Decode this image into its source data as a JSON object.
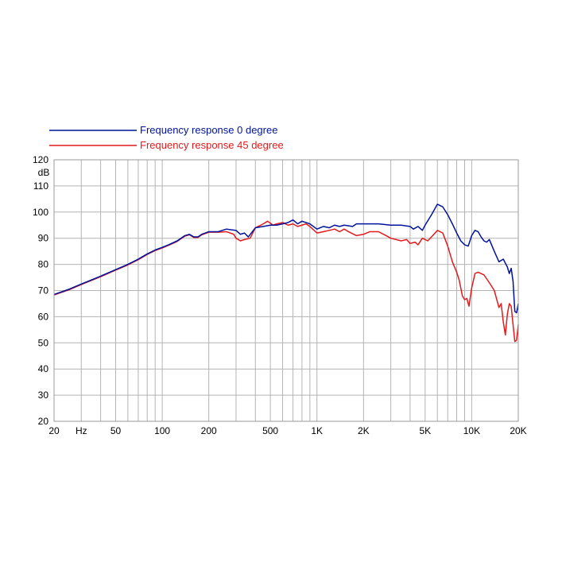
{
  "chart_data": {
    "type": "line",
    "x_scale": "log",
    "xlim": [
      20,
      20000
    ],
    "ylim": [
      20,
      120
    ],
    "ylabel": "dB",
    "grid": true,
    "legend_position": "top-left",
    "y_ticks": [
      "120",
      "110",
      "100",
      "90",
      "80",
      "70",
      "60",
      "50",
      "40",
      "30",
      "20"
    ],
    "x_ticks": [
      {
        "value": 20,
        "label": "20"
      },
      {
        "value": 30,
        "label": "Hz"
      },
      {
        "value": 50,
        "label": "50"
      },
      {
        "value": 100,
        "label": "100"
      },
      {
        "value": 200,
        "label": "200"
      },
      {
        "value": 500,
        "label": "500"
      },
      {
        "value": 1000,
        "label": "1K"
      },
      {
        "value": 2000,
        "label": "2K"
      },
      {
        "value": 5000,
        "label": "5K"
      },
      {
        "value": 10000,
        "label": "10K"
      },
      {
        "value": 20000,
        "label": "20K"
      }
    ],
    "series": [
      {
        "name": "Frequency response 0 degree",
        "color": "#00139c",
        "points": [
          [
            20,
            68.5
          ],
          [
            25,
            70.5
          ],
          [
            30,
            72.5
          ],
          [
            40,
            75.5
          ],
          [
            50,
            78
          ],
          [
            60,
            80
          ],
          [
            70,
            82
          ],
          [
            80,
            84
          ],
          [
            90,
            85.5
          ],
          [
            100,
            86.5
          ],
          [
            110,
            87.5
          ],
          [
            125,
            89
          ],
          [
            140,
            91
          ],
          [
            150,
            91.5
          ],
          [
            160,
            90.5
          ],
          [
            170,
            90.5
          ],
          [
            180,
            91.5
          ],
          [
            200,
            92.5
          ],
          [
            230,
            92.5
          ],
          [
            260,
            93.5
          ],
          [
            300,
            93
          ],
          [
            320,
            91.5
          ],
          [
            340,
            92
          ],
          [
            360,
            90.5
          ],
          [
            400,
            94
          ],
          [
            450,
            94.5
          ],
          [
            500,
            95
          ],
          [
            550,
            95
          ],
          [
            600,
            95.5
          ],
          [
            650,
            96
          ],
          [
            700,
            97
          ],
          [
            750,
            95.5
          ],
          [
            800,
            96.5
          ],
          [
            850,
            96
          ],
          [
            900,
            95.5
          ],
          [
            1000,
            93.5
          ],
          [
            1100,
            94.5
          ],
          [
            1200,
            94
          ],
          [
            1300,
            95
          ],
          [
            1400,
            94.5
          ],
          [
            1500,
            95
          ],
          [
            1700,
            94.5
          ],
          [
            1800,
            95.5
          ],
          [
            2000,
            95.5
          ],
          [
            2500,
            95.5
          ],
          [
            3000,
            95
          ],
          [
            3500,
            95
          ],
          [
            4000,
            94.5
          ],
          [
            4200,
            93.5
          ],
          [
            4500,
            94.5
          ],
          [
            4800,
            93
          ],
          [
            5000,
            95
          ],
          [
            5500,
            99
          ],
          [
            6000,
            103
          ],
          [
            6500,
            102
          ],
          [
            7000,
            99
          ],
          [
            7500,
            95.5
          ],
          [
            8000,
            92
          ],
          [
            8500,
            89
          ],
          [
            9000,
            87.5
          ],
          [
            9500,
            87
          ],
          [
            10000,
            91
          ],
          [
            10500,
            93
          ],
          [
            11000,
            92.5
          ],
          [
            11500,
            90.5
          ],
          [
            12000,
            89
          ],
          [
            12500,
            88.5
          ],
          [
            13000,
            89.5
          ],
          [
            14000,
            85
          ],
          [
            15000,
            81
          ],
          [
            16000,
            82
          ],
          [
            17000,
            79
          ],
          [
            17500,
            76.5
          ],
          [
            18000,
            78.5
          ],
          [
            18500,
            73.5
          ],
          [
            19000,
            62
          ],
          [
            19500,
            61.5
          ],
          [
            20000,
            65
          ]
        ]
      },
      {
        "name": "Frequency response 45 degree",
        "color": "#e31a1c",
        "points": [
          [
            20,
            68.3
          ],
          [
            25,
            70.3
          ],
          [
            30,
            72.3
          ],
          [
            40,
            75.3
          ],
          [
            50,
            77.8
          ],
          [
            60,
            79.8
          ],
          [
            70,
            81.8
          ],
          [
            80,
            83.8
          ],
          [
            90,
            85.3
          ],
          [
            100,
            86.3
          ],
          [
            110,
            87.3
          ],
          [
            125,
            88.8
          ],
          [
            140,
            90.8
          ],
          [
            150,
            91.3
          ],
          [
            160,
            90.3
          ],
          [
            170,
            90.3
          ],
          [
            180,
            91.3
          ],
          [
            200,
            92.3
          ],
          [
            230,
            92.3
          ],
          [
            260,
            92.5
          ],
          [
            290,
            91.5
          ],
          [
            300,
            90
          ],
          [
            320,
            89
          ],
          [
            340,
            89.5
          ],
          [
            370,
            90
          ],
          [
            400,
            94
          ],
          [
            450,
            95.5
          ],
          [
            480,
            96.5
          ],
          [
            520,
            95
          ],
          [
            550,
            95.5
          ],
          [
            600,
            96
          ],
          [
            650,
            95
          ],
          [
            700,
            95.5
          ],
          [
            750,
            94.5
          ],
          [
            800,
            95
          ],
          [
            850,
            95.5
          ],
          [
            900,
            94.5
          ],
          [
            1000,
            92
          ],
          [
            1100,
            92.5
          ],
          [
            1200,
            93
          ],
          [
            1300,
            93.5
          ],
          [
            1400,
            92.5
          ],
          [
            1500,
            93.5
          ],
          [
            1600,
            92.5
          ],
          [
            1800,
            91
          ],
          [
            2000,
            91.5
          ],
          [
            2200,
            92.5
          ],
          [
            2500,
            92.5
          ],
          [
            2800,
            91
          ],
          [
            3000,
            90
          ],
          [
            3500,
            89
          ],
          [
            3800,
            89.5
          ],
          [
            4000,
            88
          ],
          [
            4300,
            88.5
          ],
          [
            4500,
            87.5
          ],
          [
            4800,
            90
          ],
          [
            5200,
            89
          ],
          [
            5600,
            91
          ],
          [
            6000,
            93
          ],
          [
            6500,
            92
          ],
          [
            7000,
            87
          ],
          [
            7500,
            81
          ],
          [
            8000,
            77
          ],
          [
            8300,
            74
          ],
          [
            8700,
            68
          ],
          [
            9000,
            66.5
          ],
          [
            9300,
            67
          ],
          [
            9600,
            64
          ],
          [
            10000,
            71
          ],
          [
            10500,
            76.5
          ],
          [
            11000,
            77
          ],
          [
            12000,
            76
          ],
          [
            13000,
            73
          ],
          [
            14000,
            70
          ],
          [
            15000,
            63.5
          ],
          [
            15500,
            65
          ],
          [
            16000,
            58
          ],
          [
            16500,
            53
          ],
          [
            17000,
            61
          ],
          [
            17500,
            65
          ],
          [
            18000,
            64
          ],
          [
            18500,
            57
          ],
          [
            19000,
            50.5
          ],
          [
            19500,
            51
          ],
          [
            20000,
            57
          ]
        ]
      }
    ]
  }
}
